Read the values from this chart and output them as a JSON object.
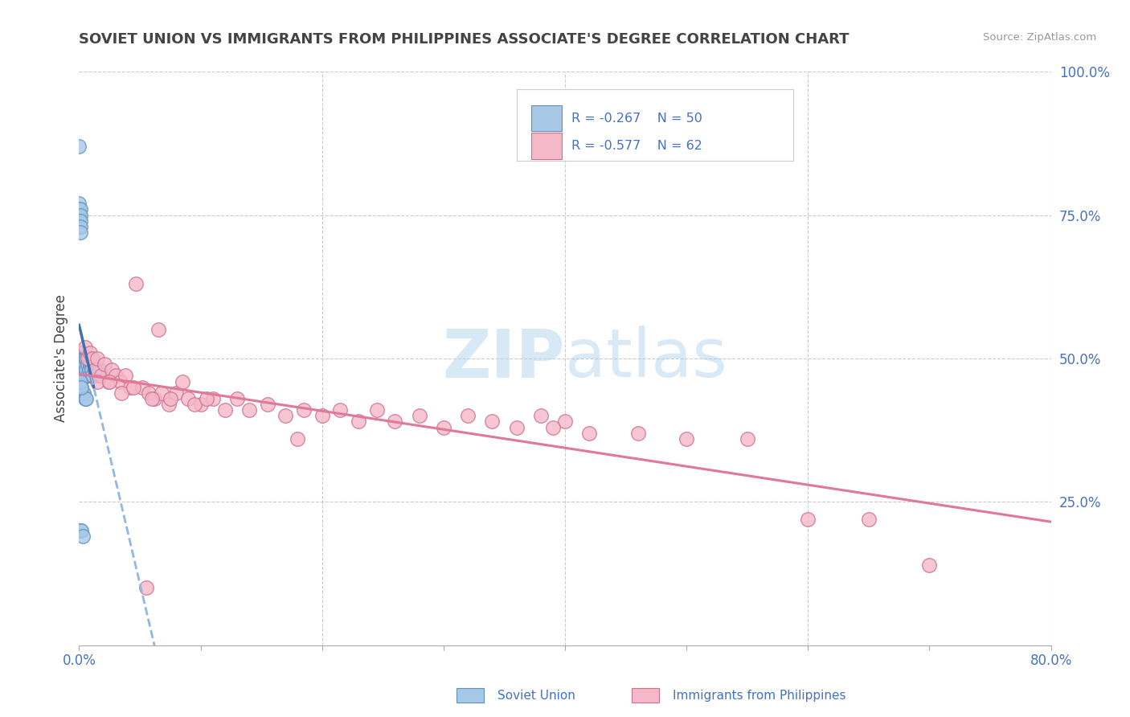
{
  "title": "SOVIET UNION VS IMMIGRANTS FROM PHILIPPINES ASSOCIATE'S DEGREE CORRELATION CHART",
  "source": "Source: ZipAtlas.com",
  "ylabel": "Associate's Degree",
  "watermark": "ZIPatlas",
  "xlim": [
    0.0,
    0.8
  ],
  "ylim": [
    0.0,
    1.0
  ],
  "legend_r1": "R = -0.267",
  "legend_n1": "N = 50",
  "legend_r2": "R = -0.577",
  "legend_n2": "N = 62",
  "legend_label1": "Soviet Union",
  "legend_label2": "Immigrants from Philippines",
  "color_blue": "#a8c8e8",
  "color_pink": "#f4b8c8",
  "edge_blue": "#6090c0",
  "edge_pink": "#d07090",
  "line_blue_solid": "#4070b0",
  "line_blue_dashed": "#90b8e0",
  "line_pink": "#e07898",
  "bg": "#ffffff",
  "grid_color": "#cccccc",
  "title_color": "#444444",
  "tick_color": "#4472c4",
  "soviet_x": [
    0.0,
    0.0,
    0.0,
    0.0,
    0.001,
    0.001,
    0.001,
    0.001,
    0.001,
    0.002,
    0.002,
    0.002,
    0.002,
    0.003,
    0.003,
    0.003,
    0.003,
    0.004,
    0.004,
    0.004,
    0.005,
    0.005,
    0.005,
    0.006,
    0.006,
    0.007,
    0.007,
    0.008,
    0.008,
    0.009,
    0.009,
    0.01,
    0.01,
    0.011,
    0.012,
    0.013,
    0.014,
    0.015,
    0.016,
    0.017,
    0.002,
    0.003,
    0.004,
    0.005,
    0.006,
    0.001,
    0.002,
    0.003,
    0.001,
    0.002
  ],
  "soviet_y": [
    0.87,
    0.77,
    0.76,
    0.75,
    0.76,
    0.75,
    0.74,
    0.73,
    0.72,
    0.5,
    0.51,
    0.49,
    0.48,
    0.5,
    0.49,
    0.48,
    0.47,
    0.5,
    0.49,
    0.48,
    0.5,
    0.49,
    0.47,
    0.5,
    0.48,
    0.49,
    0.47,
    0.5,
    0.48,
    0.49,
    0.47,
    0.49,
    0.48,
    0.47,
    0.49,
    0.48,
    0.47,
    0.48,
    0.47,
    0.48,
    0.45,
    0.44,
    0.44,
    0.43,
    0.43,
    0.2,
    0.2,
    0.19,
    0.46,
    0.45
  ],
  "phil_x": [
    0.005,
    0.007,
    0.009,
    0.011,
    0.013,
    0.015,
    0.018,
    0.021,
    0.024,
    0.027,
    0.03,
    0.034,
    0.038,
    0.042,
    0.047,
    0.052,
    0.057,
    0.062,
    0.068,
    0.074,
    0.08,
    0.09,
    0.1,
    0.11,
    0.12,
    0.13,
    0.14,
    0.155,
    0.17,
    0.185,
    0.2,
    0.215,
    0.23,
    0.245,
    0.26,
    0.28,
    0.3,
    0.32,
    0.34,
    0.36,
    0.015,
    0.025,
    0.035,
    0.045,
    0.06,
    0.075,
    0.095,
    0.38,
    0.4,
    0.065,
    0.085,
    0.105,
    0.39,
    0.42,
    0.46,
    0.5,
    0.55,
    0.6,
    0.65,
    0.7,
    0.18,
    0.055
  ],
  "phil_y": [
    0.52,
    0.5,
    0.51,
    0.5,
    0.48,
    0.5,
    0.47,
    0.49,
    0.46,
    0.48,
    0.47,
    0.46,
    0.47,
    0.45,
    0.63,
    0.45,
    0.44,
    0.43,
    0.44,
    0.42,
    0.44,
    0.43,
    0.42,
    0.43,
    0.41,
    0.43,
    0.41,
    0.42,
    0.4,
    0.41,
    0.4,
    0.41,
    0.39,
    0.41,
    0.39,
    0.4,
    0.38,
    0.4,
    0.39,
    0.38,
    0.46,
    0.46,
    0.44,
    0.45,
    0.43,
    0.43,
    0.42,
    0.4,
    0.39,
    0.55,
    0.46,
    0.43,
    0.38,
    0.37,
    0.37,
    0.36,
    0.36,
    0.22,
    0.22,
    0.14,
    0.36,
    0.1
  ]
}
